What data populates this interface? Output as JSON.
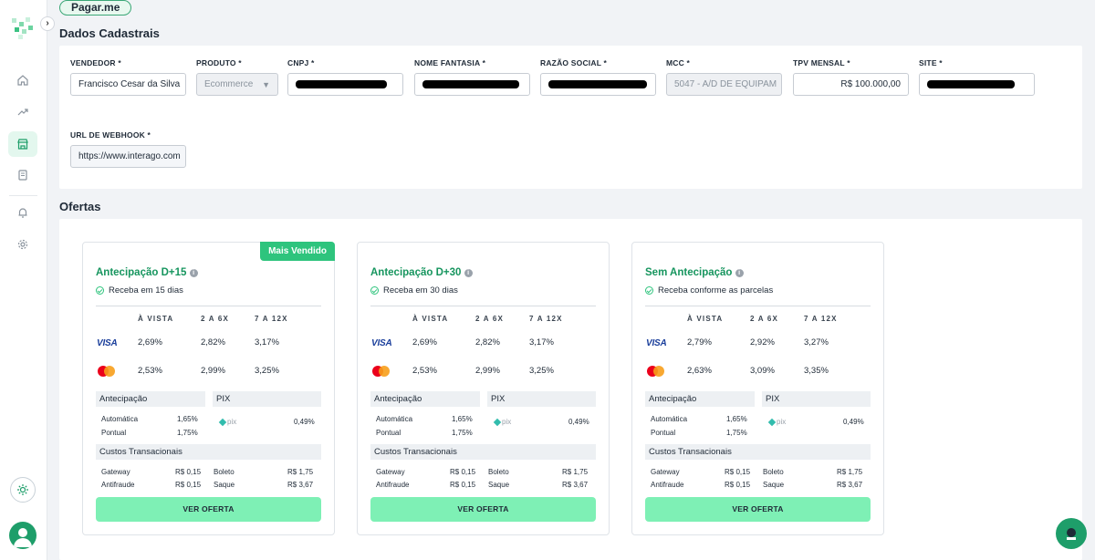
{
  "app": {
    "brand": "Pagar.me"
  },
  "sections": {
    "registration_title": "Dados Cadastrais",
    "offers_title": "Ofertas"
  },
  "form": {
    "vendedor": {
      "label": "VENDEDOR *",
      "value": "Francisco Cesar da Silva"
    },
    "produto": {
      "label": "PRODUTO *",
      "value": "Ecommerce"
    },
    "cnpj": {
      "label": "CNPJ *"
    },
    "nome_fantasia": {
      "label": "NOME FANTASIA *"
    },
    "razao_social": {
      "label": "RAZÃO SOCIAL *"
    },
    "mcc": {
      "label": "MCC *",
      "value": "5047 - A/D DE EQUIPAM"
    },
    "tpv": {
      "label": "TPV MENSAL *",
      "value": "R$ 100.000,00"
    },
    "site": {
      "label": "SITE *"
    },
    "webhook": {
      "label": "URL DE WEBHOOK *",
      "value": "https://www.interago.com"
    }
  },
  "offers": {
    "col_headers": [
      "À VISTA",
      "2 A 6X",
      "7 A 12X"
    ],
    "visa_label": "VISA",
    "antecipacao_label": "Antecipação",
    "pix_label": "PIX",
    "pix_logo": "pix",
    "automatica_label": "Automática",
    "pontual_label": "Pontual",
    "custos_label": "Custos Transacionais",
    "gateway_label": "Gateway",
    "antifraude_label": "Antifraude",
    "boleto_label": "Boleto",
    "saque_label": "Saque",
    "button_label": "VER OFERTA",
    "badge": "Mais Vendido",
    "cards": [
      {
        "title": "Antecipação D+15",
        "subtitle": "Receba em 15 dias",
        "visa": [
          "2,69%",
          "2,82%",
          "3,17%"
        ],
        "master": [
          "2,53%",
          "2,99%",
          "3,25%"
        ],
        "automatica": "1,65%",
        "pontual": "1,75%",
        "pix": "0,49%",
        "gateway": "R$ 0,15",
        "antifraude": "R$ 0,15",
        "boleto": "R$ 1,75",
        "saque": "R$ 3,67"
      },
      {
        "title": "Antecipação D+30",
        "subtitle": "Receba em 30 dias",
        "visa": [
          "2,69%",
          "2,82%",
          "3,17%"
        ],
        "master": [
          "2,53%",
          "2,99%",
          "3,25%"
        ],
        "automatica": "1,65%",
        "pontual": "1,75%",
        "pix": "0,49%",
        "gateway": "R$ 0,15",
        "antifraude": "R$ 0,15",
        "boleto": "R$ 1,75",
        "saque": "R$ 3,67"
      },
      {
        "title": "Sem Antecipação",
        "subtitle": "Receba conforme as parcelas",
        "visa": [
          "2,79%",
          "2,92%",
          "3,27%"
        ],
        "master": [
          "2,63%",
          "3,09%",
          "3,35%"
        ],
        "automatica": "1,65%",
        "pontual": "1,75%",
        "pix": "0,49%",
        "gateway": "R$ 0,15",
        "antifraude": "R$ 0,15",
        "boleto": "R$ 1,75",
        "saque": "R$ 3,67"
      }
    ]
  },
  "colors": {
    "accent": "#2ec47d",
    "button": "#7ef0b5",
    "title_green": "#16955e"
  }
}
